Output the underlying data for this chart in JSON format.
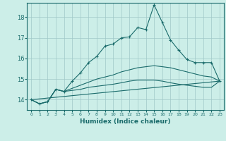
{
  "xlabel": "Humidex (Indice chaleur)",
  "bg_color": "#cceee8",
  "grid_color": "#a0c8c8",
  "line_color": "#1a6b6b",
  "x_ticks": [
    0,
    1,
    2,
    3,
    4,
    5,
    6,
    7,
    8,
    9,
    10,
    11,
    12,
    13,
    14,
    15,
    16,
    17,
    18,
    19,
    20,
    21,
    22,
    23
  ],
  "ylim": [
    13.5,
    18.7
  ],
  "xlim": [
    -0.5,
    23.5
  ],
  "yticks": [
    14,
    15,
    16,
    17,
    18
  ],
  "line1_x": [
    0,
    1,
    2,
    3,
    4,
    5,
    6,
    7,
    8,
    9,
    10,
    11,
    12,
    13,
    14,
    15,
    16,
    17,
    18,
    19,
    20,
    21,
    22,
    23
  ],
  "line1_y": [
    14.0,
    13.8,
    13.9,
    14.5,
    14.4,
    14.9,
    15.3,
    15.8,
    16.1,
    16.6,
    16.7,
    17.0,
    17.05,
    17.5,
    17.4,
    18.6,
    17.75,
    16.9,
    16.4,
    15.95,
    15.8,
    15.8,
    15.8,
    14.9
  ],
  "line2_x": [
    0,
    1,
    2,
    3,
    4,
    5,
    6,
    7,
    8,
    9,
    10,
    11,
    12,
    13,
    14,
    15,
    16,
    17,
    18,
    19,
    20,
    21,
    22,
    23
  ],
  "line2_y": [
    14.0,
    13.8,
    13.9,
    14.5,
    14.4,
    14.55,
    14.7,
    14.85,
    15.0,
    15.1,
    15.2,
    15.35,
    15.45,
    15.55,
    15.6,
    15.65,
    15.6,
    15.55,
    15.45,
    15.35,
    15.25,
    15.15,
    15.1,
    14.9
  ],
  "line3_x": [
    0,
    1,
    2,
    3,
    4,
    5,
    6,
    7,
    8,
    9,
    10,
    11,
    12,
    13,
    14,
    15,
    16,
    17,
    18,
    19,
    20,
    21,
    22,
    23
  ],
  "line3_y": [
    14.0,
    13.8,
    13.9,
    14.5,
    14.4,
    14.45,
    14.5,
    14.6,
    14.65,
    14.7,
    14.75,
    14.82,
    14.9,
    14.95,
    14.95,
    14.95,
    14.9,
    14.82,
    14.75,
    14.7,
    14.65,
    14.6,
    14.6,
    14.9
  ],
  "line4_x": [
    0,
    23
  ],
  "line4_y": [
    14.0,
    14.9
  ]
}
